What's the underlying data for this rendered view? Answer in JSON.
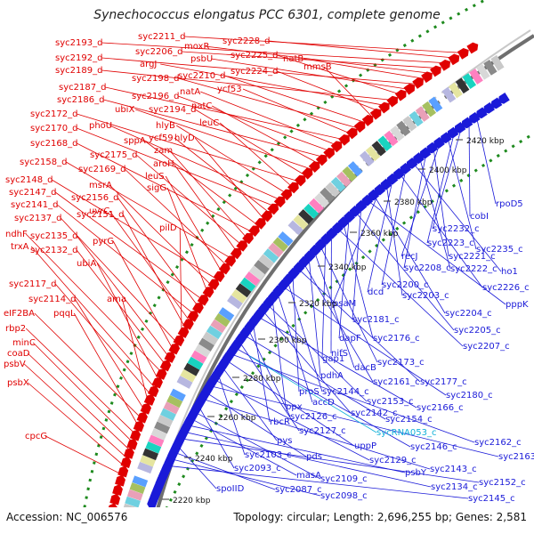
{
  "title": "Synechococcus elongatus PCC 6301, complete genome",
  "footer": {
    "accession": "Accession: NC_006576",
    "summary": "Topology: circular; Length: 2,696,255 bp; Genes: 2,581"
  },
  "colors": {
    "forward": "#e00000",
    "reverse": "#1a1ad8",
    "rna": "#11b0d8",
    "backbone": "#7f7f7f",
    "dots": "#1e8a1e"
  },
  "kbp_ticks": [
    "2220 kbp",
    "2240 kbp",
    "2260 kbp",
    "2280 kbp",
    "2300 kbp",
    "2320 kbp",
    "2340 kbp",
    "2360 kbp",
    "2380 kbp",
    "2400 kbp",
    "2420 kbp"
  ],
  "forward_genes": [
    "syc2211_d",
    "syc2228_d",
    "syc2193_d",
    "syc2206_d",
    "moxR",
    "natB",
    "syc2192_d",
    "psbU",
    "syc2225_d",
    "syc2189_d",
    "argJ",
    "syc2224_d",
    "mmsB",
    "syc2210_d",
    "syc2198_d",
    "ycf53",
    "syc2187_d",
    "natA",
    "syc2196_d",
    "syc2186_d",
    "natC",
    "ubiX",
    "syc2194_d",
    "syc2172_d",
    "leuC",
    "hlyB",
    "phoU",
    "syc2170_d",
    "ycf59",
    "hlyD",
    "sppA",
    "syc2168_d",
    "zam",
    "syc2175_d",
    "aroH",
    "syc2158_d",
    "syc2169_d",
    "leuS",
    "syc2148_d",
    "msrA",
    "sigG",
    "syc2147_d",
    "syc2156_d",
    "syc2141_d",
    "uvrC",
    "syc2151_d",
    "pilD",
    "syc2137_d",
    "pyrG",
    "syc2135_d",
    "syc2132_d",
    "ndhF",
    "ubiA",
    "trxA",
    "syc2117_d",
    "ama",
    "syc2114_d",
    "eIF2BA",
    "pqqL",
    "rbp2",
    "minC",
    "coaD",
    "psbV",
    "psbX",
    "cpcG"
  ],
  "reverse_genes": [
    "rpoD5",
    "cobI",
    "syc2232_c",
    "syc2223_c",
    "syc2235_c",
    "recJ",
    "syc2221_c",
    "syc2208_c",
    "syc2222_c",
    "ho1",
    "syc2200_c",
    "syc2226_c",
    "dcd",
    "syc2203_c",
    "psaM",
    "syc2204_c",
    "pppK",
    "syc2181_c",
    "syc2205_c",
    "dapF",
    "syc2176_c",
    "syc2207_c",
    "nifS",
    "gap1",
    "syc2173_c",
    "dacB",
    "pdhA",
    "syc2161_c",
    "syc2177_c",
    "proS",
    "syc2144_c",
    "syc2180_c",
    "accD",
    "ppx",
    "syc2153_c",
    "syc2142_c",
    "syc2166_c",
    "rbcR",
    "syc2126_c",
    "syc2154_c",
    "syc2127_c",
    "syc2146_c",
    "syc2162_c",
    "uppP",
    "pys",
    "syc2103_c",
    "syc2129_c",
    "syc2163_c",
    "pds",
    "syc2143_c",
    "syc2093_c",
    "syc2109_c",
    "masA",
    "psbY",
    "syc2134_c",
    "syc2152_c",
    "spoIID",
    "syc2087_c",
    "syc2098_c",
    "syc2145_c"
  ],
  "rna_genes": [
    "sycRNA053_c"
  ]
}
